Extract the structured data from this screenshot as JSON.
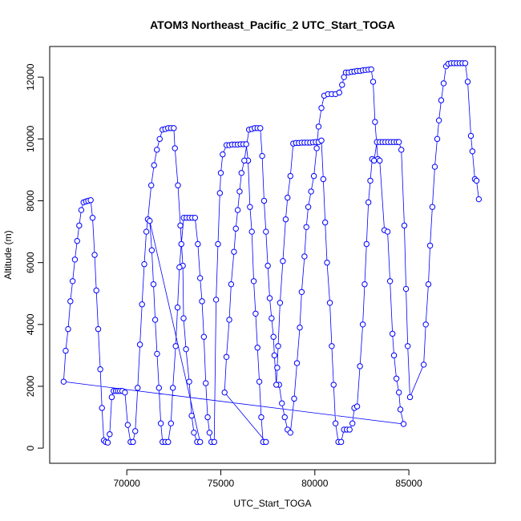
{
  "chart_data": {
    "type": "line",
    "markers": true,
    "title": "ATOM3 Northeast_Pacific_2 UTC_Start_TOGA",
    "xlabel": "UTC_Start_TOGA",
    "ylabel": "Altitude (m)",
    "xlim": [
      65900,
      89600
    ],
    "ylim": [
      -490,
      12990
    ],
    "xticks": [
      70000,
      75000,
      80000,
      85000
    ],
    "yticks": [
      0,
      2000,
      4000,
      6000,
      8000,
      10000,
      12000
    ],
    "x": [
      78100,
      78250,
      78400,
      78550,
      78700,
      78900,
      79050,
      79200,
      79300,
      79450,
      79550,
      79650,
      79800,
      79950,
      80100,
      80200,
      80350,
      80500,
      80700,
      80900,
      81100,
      81300,
      81450,
      81550,
      81650,
      81800,
      81950,
      82100,
      82250,
      82400,
      82550,
      82700,
      82850,
      83000,
      83100,
      83200,
      83350,
      83450,
      83700,
      83870,
      84000,
      84130,
      84210,
      84340,
      84470,
      84550,
      84720,
      66640,
      66750,
      66880,
      67000,
      67120,
      67240,
      67360,
      67470,
      67580,
      67700,
      67830,
      67950,
      68080,
      68180,
      68290,
      68380,
      68480,
      68590,
      68680,
      68780,
      68880,
      68990,
      69090,
      69200,
      69300,
      69420,
      69530,
      69640,
      69760,
      69900,
      70050,
      70200,
      70330,
      70450,
      70580,
      70700,
      70810,
      70930,
      71040,
      71120,
      71300,
      71450,
      71600,
      71750,
      71900,
      72050,
      72200,
      72350,
      72500,
      72560,
      72720,
      72850,
      72980,
      73020,
      73150,
      73320,
      73450,
      73570,
      73740,
      73900,
      71220,
      71330,
      71420,
      71510,
      71610,
      71710,
      71810,
      71900,
      72050,
      72200,
      72350,
      72450,
      72600,
      72700,
      72800,
      72900,
      73030,
      73180,
      73330,
      73480,
      73630,
      73780,
      73900,
      74000,
      74100,
      74200,
      74300,
      74400,
      74500,
      74650,
      74750,
      74850,
      74950,
      75000,
      75100,
      75300,
      75450,
      75600,
      75750,
      75900,
      76050,
      76200,
      76350,
      76450,
      76550,
      76650,
      76750,
      76850,
      76950,
      77050,
      77150,
      77250,
      77400,
      75200,
      75300,
      75450,
      75550,
      75700,
      75800,
      75900,
      76000,
      76100,
      76250,
      76500,
      76650,
      76800,
      76950,
      77100,
      77200,
      77300,
      77400,
      77500,
      77600,
      77700,
      77800,
      77850,
      77950,
      78000,
      78050,
      78150,
      78300,
      78450,
      78550,
      78700,
      78850,
      79000,
      79150,
      79300,
      79450,
      79600,
      79750,
      79900,
      80050,
      80200,
      80350,
      80450,
      80550,
      80650,
      80800,
      80900,
      81000,
      81100,
      81250,
      81400,
      81550,
      81700,
      81850,
      82000,
      82100,
      82250,
      82400,
      82550,
      82650,
      82750,
      82850,
      82950,
      83050,
      83150,
      83300,
      83450,
      83600,
      83750,
      83900,
      84050,
      84200,
      84350,
      84470,
      84600,
      84760,
      84850,
      84940,
      85060,
      85790,
      85900,
      86040,
      86130,
      86250,
      86380,
      86510,
      86600,
      86720,
      86850,
      86980,
      87100,
      87250,
      87400,
      87550,
      87700,
      87850,
      88000,
      88130,
      88300,
      88380,
      88510,
      88600,
      88720
    ],
    "series": [
      {
        "color": "#0000ff",
        "values": [
          2050,
          1450,
          1000,
          600,
          500,
          1600,
          2750,
          3900,
          5050,
          6200,
          7150,
          7800,
          8300,
          8800,
          9700,
          10400,
          11000,
          11400,
          11450,
          11450,
          11450,
          11500,
          11750,
          12000,
          12150,
          12150,
          12170,
          12180,
          12200,
          12200,
          12220,
          12230,
          12240,
          12250,
          11850,
          10550,
          9350,
          9300,
          7050,
          7000,
          5400,
          3700,
          3000,
          2250,
          1800,
          1250,
          780,
          2150,
          3150,
          3850,
          4750,
          5400,
          6100,
          6700,
          7200,
          7700,
          7950,
          7980,
          8000,
          8020,
          7450,
          6250,
          5100,
          3850,
          2550,
          1300,
          250,
          200,
          180,
          450,
          1650,
          1850,
          1850,
          1850,
          1850,
          1850,
          1800,
          750,
          200,
          200,
          550,
          1950,
          3350,
          4650,
          5950,
          7000,
          7400,
          8500,
          9150,
          9650,
          10000,
          10300,
          10320,
          10350,
          10350,
          10350,
          9700,
          8500,
          7200,
          5900,
          4200,
          3200,
          2150,
          1050,
          500,
          200,
          200,
          7350,
          6400,
          5300,
          4150,
          3050,
          1950,
          800,
          200,
          200,
          200,
          800,
          1950,
          3300,
          4550,
          5850,
          6600,
          7450,
          7450,
          7450,
          7450,
          7450,
          6600,
          5500,
          4750,
          3600,
          2100,
          1000,
          500,
          200,
          200,
          4800,
          6600,
          8250,
          8900,
          9500,
          9800,
          9800,
          9820,
          9820,
          9820,
          9830,
          9830,
          9830,
          9300,
          7800,
          7000,
          5400,
          4350,
          3250,
          2150,
          1000,
          200,
          200,
          1800,
          2950,
          4150,
          5300,
          6350,
          7100,
          7700,
          8300,
          8900,
          9300,
          10300,
          10320,
          10350,
          10350,
          10350,
          9450,
          8000,
          7000,
          5900,
          4850,
          4200,
          3600,
          3000,
          2050,
          2600,
          3300,
          4700,
          6050,
          7400,
          8100,
          8800,
          9850,
          9870,
          9870,
          9880,
          9880,
          9880,
          9880,
          9890,
          9900,
          9900,
          9950,
          8700,
          7300,
          6000,
          4700,
          3300,
          2050,
          800,
          200,
          200,
          600,
          600,
          600,
          800,
          1300,
          1350,
          2650,
          4000,
          5300,
          6600,
          7950,
          8650,
          9350,
          9300,
          9900,
          9900,
          9900,
          9900,
          9900,
          9900,
          9900,
          9900,
          9900,
          9650,
          7200,
          5150,
          3300,
          1650,
          2700,
          4000,
          5300,
          6550,
          7800,
          9100,
          10000,
          10600,
          11250,
          11800,
          12350,
          12430,
          12450,
          12450,
          12450,
          12450,
          12450,
          12450,
          11850,
          10100,
          9600,
          8700,
          8650,
          8050
        ]
      }
    ]
  }
}
